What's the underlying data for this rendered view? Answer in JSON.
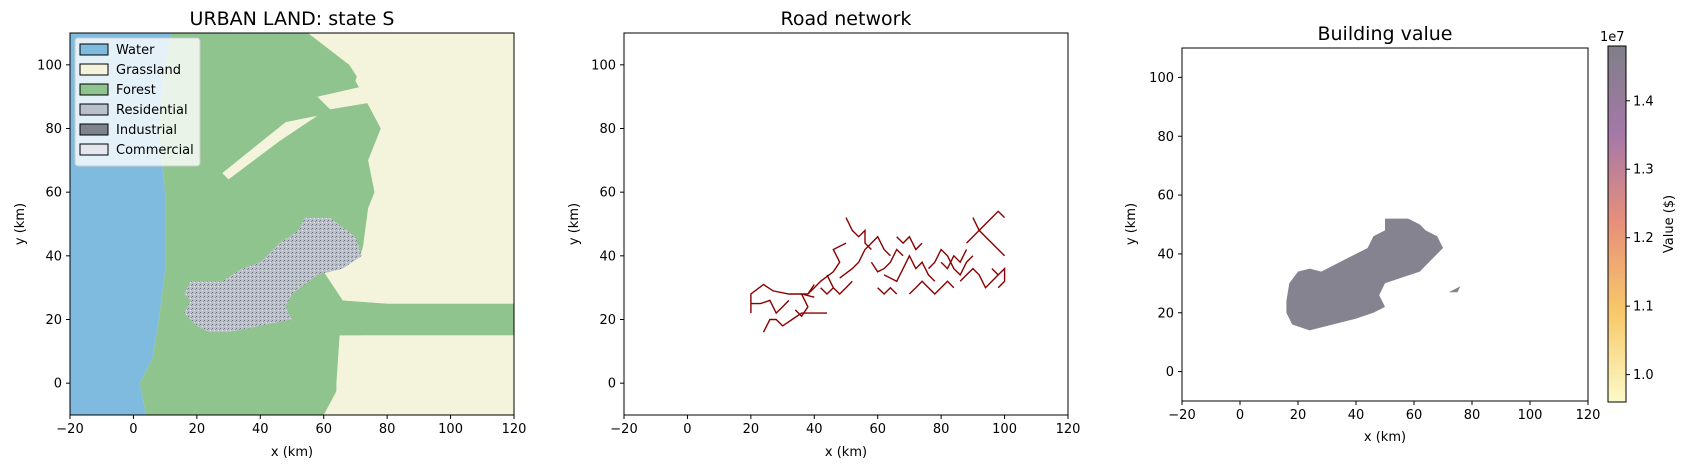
{
  "chart_data": [
    {
      "type": "map",
      "title": "URBAN LAND: state S",
      "xlabel": "x (km)",
      "ylabel": "y (km)",
      "xlim": [
        -20,
        120
      ],
      "ylim": [
        -10,
        110
      ],
      "xticks": [
        -20,
        0,
        20,
        40,
        60,
        80,
        100,
        120
      ],
      "yticks": [
        0,
        20,
        40,
        60,
        80,
        100
      ],
      "legend_position": "top-left",
      "legend": [
        {
          "label": "Water",
          "color": "#7fbbdf"
        },
        {
          "label": "Grassland",
          "color": "#f4f4dc"
        },
        {
          "label": "Forest",
          "color": "#8fc48e"
        },
        {
          "label": "Residential",
          "color": "#b9bfcb"
        },
        {
          "label": "Industrial",
          "color": "#7f848c"
        },
        {
          "label": "Commercial",
          "color": "#e4e8ee"
        }
      ],
      "regions": {
        "water": [
          [
            -20,
            -10
          ],
          [
            4,
            -10
          ],
          [
            2,
            0
          ],
          [
            6,
            8
          ],
          [
            8,
            20
          ],
          [
            10,
            35
          ],
          [
            10,
            60
          ],
          [
            8,
            80
          ],
          [
            10,
            100
          ],
          [
            12,
            110
          ],
          [
            -20,
            110
          ]
        ],
        "forest": [
          [
            4,
            -10
          ],
          [
            64,
            -10
          ],
          [
            64,
            0
          ],
          [
            65,
            15
          ],
          [
            120,
            15
          ],
          [
            120,
            25
          ],
          [
            80,
            25
          ],
          [
            66,
            26
          ],
          [
            60,
            35
          ],
          [
            72,
            40
          ],
          [
            74,
            55
          ],
          [
            76,
            60
          ],
          [
            74,
            70
          ],
          [
            78,
            80
          ],
          [
            70,
            95
          ],
          [
            75,
            110
          ],
          [
            12,
            110
          ],
          [
            10,
            100
          ],
          [
            8,
            80
          ],
          [
            10,
            60
          ],
          [
            10,
            35
          ],
          [
            8,
            20
          ],
          [
            6,
            8
          ],
          [
            2,
            0
          ]
        ],
        "grassland_patches": [
          [
            [
              40,
              110
            ],
            [
              120,
              110
            ],
            [
              120,
              25
            ],
            [
              80,
              25
            ],
            [
              66,
              26
            ],
            [
              70,
              35
            ],
            [
              76,
              55
            ],
            [
              80,
              70
            ],
            [
              78,
              85
            ],
            [
              68,
              100
            ],
            [
              55,
              110
            ]
          ],
          [
            [
              60,
              -10
            ],
            [
              120,
              -10
            ],
            [
              120,
              15
            ],
            [
              72,
              15
            ],
            [
              68,
              5
            ]
          ],
          [
            [
              28,
              66
            ],
            [
              48,
              82
            ],
            [
              58,
              84
            ],
            [
              46,
              76
            ],
            [
              30,
              64
            ]
          ],
          [
            [
              58,
              90
            ],
            [
              80,
              95
            ],
            [
              74,
              88
            ],
            [
              62,
              86
            ]
          ]
        ],
        "residential": [
          [
            16,
            28
          ],
          [
            18,
            32
          ],
          [
            28,
            32
          ],
          [
            34,
            36
          ],
          [
            40,
            38
          ],
          [
            46,
            44
          ],
          [
            52,
            48
          ],
          [
            54,
            52
          ],
          [
            62,
            52
          ],
          [
            70,
            46
          ],
          [
            72,
            40
          ],
          [
            66,
            36
          ],
          [
            58,
            34
          ],
          [
            50,
            28
          ],
          [
            48,
            24
          ],
          [
            50,
            20
          ],
          [
            40,
            18
          ],
          [
            30,
            16
          ],
          [
            24,
            16
          ],
          [
            20,
            18
          ],
          [
            16,
            22
          ],
          [
            18,
            26
          ]
        ]
      }
    },
    {
      "type": "network",
      "title": "Road network",
      "xlabel": "x (km)",
      "ylabel": "y (km)",
      "xlim": [
        -20,
        120
      ],
      "ylim": [
        -10,
        110
      ],
      "xticks": [
        -20,
        0,
        20,
        40,
        60,
        80,
        100,
        120
      ],
      "yticks": [
        0,
        20,
        40,
        60,
        80,
        100
      ],
      "color": "#8b0000",
      "roads": [
        [
          [
            20,
            22
          ],
          [
            20,
            28
          ],
          [
            24,
            31
          ],
          [
            27,
            29
          ],
          [
            32,
            28
          ],
          [
            35,
            28
          ],
          [
            38,
            28
          ],
          [
            40,
            31
          ]
        ],
        [
          [
            24,
            16
          ],
          [
            26,
            20
          ],
          [
            28,
            20
          ],
          [
            30,
            18
          ],
          [
            33,
            20
          ],
          [
            36,
            22
          ],
          [
            40,
            22
          ],
          [
            44,
            22
          ]
        ],
        [
          [
            20,
            25
          ],
          [
            23,
            25
          ],
          [
            26,
            26
          ],
          [
            28,
            22
          ],
          [
            30,
            24
          ],
          [
            32,
            26
          ]
        ],
        [
          [
            34,
            23
          ],
          [
            36,
            21
          ],
          [
            38,
            24
          ],
          [
            36,
            28
          ],
          [
            40,
            27
          ]
        ],
        [
          [
            38,
            28
          ],
          [
            40,
            30
          ],
          [
            42,
            32
          ],
          [
            46,
            35
          ],
          [
            48,
            38
          ],
          [
            46,
            42
          ],
          [
            50,
            44
          ]
        ],
        [
          [
            48,
            33
          ],
          [
            52,
            36
          ],
          [
            54,
            38
          ],
          [
            56,
            42
          ],
          [
            58,
            44
          ],
          [
            60,
            46
          ],
          [
            62,
            42
          ],
          [
            64,
            40
          ]
        ],
        [
          [
            50,
            52
          ],
          [
            52,
            48
          ],
          [
            54,
            46
          ],
          [
            56,
            48
          ],
          [
            56,
            44
          ],
          [
            58,
            42
          ]
        ],
        [
          [
            58,
            38
          ],
          [
            60,
            35
          ],
          [
            62,
            36
          ],
          [
            64,
            38
          ],
          [
            66,
            42
          ],
          [
            68,
            40
          ]
        ],
        [
          [
            62,
            34
          ],
          [
            66,
            32
          ],
          [
            68,
            36
          ],
          [
            70,
            40
          ],
          [
            72,
            36
          ],
          [
            74,
            38
          ],
          [
            76,
            34
          ],
          [
            78,
            32
          ]
        ],
        [
          [
            70,
            28
          ],
          [
            72,
            30
          ],
          [
            74,
            32
          ],
          [
            76,
            30
          ],
          [
            78,
            28
          ],
          [
            80,
            30
          ],
          [
            82,
            32
          ],
          [
            84,
            30
          ]
        ],
        [
          [
            76,
            36
          ],
          [
            78,
            38
          ],
          [
            80,
            42
          ],
          [
            82,
            40
          ],
          [
            84,
            36
          ],
          [
            86,
            34
          ],
          [
            88,
            38
          ],
          [
            90,
            40
          ]
        ],
        [
          [
            86,
            32
          ],
          [
            88,
            34
          ],
          [
            90,
            36
          ],
          [
            92,
            34
          ],
          [
            94,
            30
          ],
          [
            96,
            32
          ],
          [
            98,
            34
          ]
        ],
        [
          [
            88,
            44
          ],
          [
            90,
            46
          ],
          [
            92,
            48
          ],
          [
            94,
            50
          ],
          [
            96,
            52
          ],
          [
            98,
            54
          ],
          [
            100,
            52
          ]
        ],
        [
          [
            90,
            52
          ],
          [
            92,
            48
          ],
          [
            94,
            46
          ],
          [
            96,
            44
          ],
          [
            100,
            40
          ]
        ],
        [
          [
            96,
            36
          ],
          [
            98,
            34
          ],
          [
            100,
            36
          ],
          [
            100,
            32
          ],
          [
            98,
            30
          ]
        ],
        [
          [
            80,
            38
          ],
          [
            82,
            36
          ],
          [
            84,
            40
          ],
          [
            86,
            38
          ],
          [
            88,
            42
          ]
        ],
        [
          [
            66,
            46
          ],
          [
            68,
            44
          ],
          [
            70,
            46
          ],
          [
            72,
            42
          ],
          [
            74,
            44
          ]
        ],
        [
          [
            44,
            34
          ],
          [
            46,
            30
          ],
          [
            48,
            28
          ],
          [
            50,
            30
          ],
          [
            52,
            32
          ]
        ],
        [
          [
            60,
            30
          ],
          [
            62,
            28
          ],
          [
            64,
            30
          ],
          [
            66,
            28
          ]
        ],
        [
          [
            42,
            30
          ],
          [
            44,
            28
          ],
          [
            46,
            30
          ]
        ]
      ]
    },
    {
      "type": "heatmap",
      "title": "Building value",
      "xlabel": "x (km)",
      "ylabel": "y (km)",
      "xlim": [
        -20,
        120
      ],
      "ylim": [
        -10,
        110
      ],
      "xticks": [
        -20,
        0,
        20,
        40,
        60,
        80,
        100,
        120
      ],
      "yticks": [
        0,
        20,
        40,
        60,
        80,
        100
      ],
      "colorbar": {
        "label": "Value ($)",
        "exponent": "1e7",
        "min": 0.96,
        "max": 1.48,
        "ticks": [
          1.0,
          1.1,
          1.2,
          1.3,
          1.4
        ],
        "colors": [
          "#fcfac8",
          "#f7c96a",
          "#e8907a",
          "#a678a8",
          "#7f7f88"
        ]
      },
      "fill_color": "#84838f",
      "region": [
        [
          16,
          24
        ],
        [
          17,
          30
        ],
        [
          20,
          34
        ],
        [
          24,
          35
        ],
        [
          28,
          34
        ],
        [
          32,
          36
        ],
        [
          36,
          38
        ],
        [
          40,
          40
        ],
        [
          44,
          42
        ],
        [
          46,
          46
        ],
        [
          50,
          48
        ],
        [
          50,
          52
        ],
        [
          58,
          52
        ],
        [
          62,
          50
        ],
        [
          64,
          48
        ],
        [
          68,
          46
        ],
        [
          70,
          42
        ],
        [
          66,
          38
        ],
        [
          62,
          34
        ],
        [
          56,
          32
        ],
        [
          50,
          30
        ],
        [
          48,
          26
        ],
        [
          50,
          22
        ],
        [
          46,
          20
        ],
        [
          40,
          18
        ],
        [
          32,
          16
        ],
        [
          24,
          14
        ],
        [
          18,
          16
        ],
        [
          16,
          20
        ]
      ],
      "outlier": [
        [
          72,
          27
        ],
        [
          76,
          29
        ],
        [
          75,
          27
        ]
      ]
    }
  ]
}
